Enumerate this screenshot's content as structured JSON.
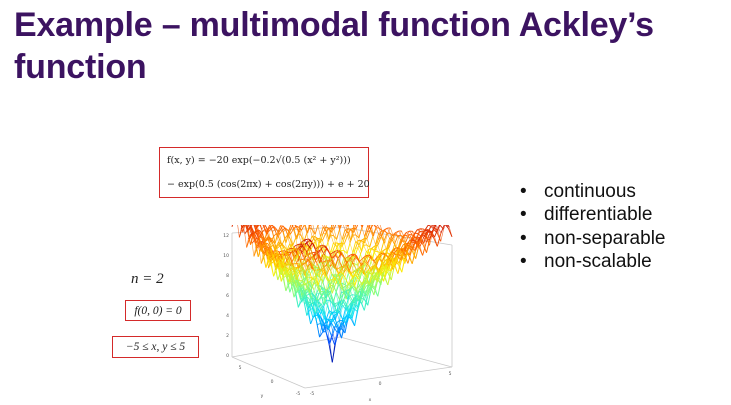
{
  "slide": {
    "title": "Example – multimodal function Ackley’s function"
  },
  "formula": {
    "line1": "f(x, y) = −20 exp(−0.2√(0.5 (x² + y²)))",
    "line2": "− exp(0.5 (cos(2πx) + cos(2πy))) + e + 20"
  },
  "params": {
    "n": "n = 2",
    "minimum": "f(0, 0) = 0",
    "domain": "−5 ≤ x, y ≤ 5"
  },
  "properties": [
    "continuous",
    "differentiable",
    "non-separable",
    "non-scalable"
  ],
  "plot": {
    "z_ticks": [
      "12",
      "10",
      "8",
      "6",
      "4",
      "2",
      "0"
    ],
    "y_ticks": [
      "-5",
      "0",
      "5"
    ],
    "x_ticks": [
      "-5",
      "0",
      "5"
    ],
    "y_label": "y",
    "x_label": "x",
    "colormap": [
      "#00008f",
      "#0050ff",
      "#00dfff",
      "#70ff8f",
      "#ffef00",
      "#ff6000",
      "#c00000"
    ]
  }
}
